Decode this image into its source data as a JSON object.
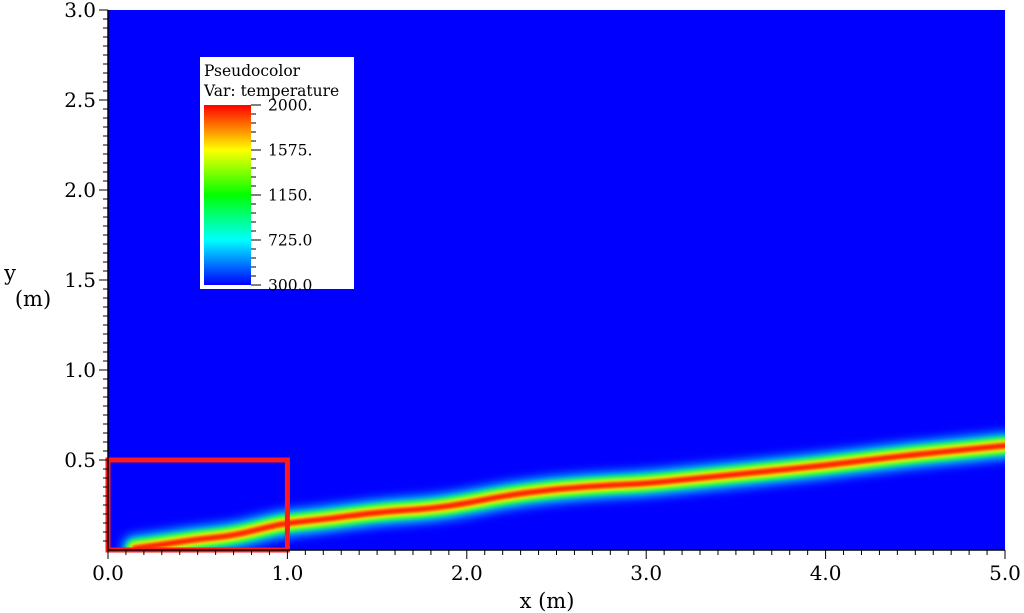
{
  "chart_data": {
    "type": "heatmap",
    "xlabel": "x (m)",
    "ylabel": "y",
    "ylabel_unit": "(m)",
    "xlim": [
      0.0,
      5.0
    ],
    "ylim": [
      0.0,
      3.0
    ],
    "x_tick_values": [
      0.0,
      1.0,
      2.0,
      3.0,
      4.0,
      5.0
    ],
    "x_tick_labels": [
      "0.0",
      "1.0",
      "2.0",
      "3.0",
      "4.0",
      "5.0"
    ],
    "y_tick_values": [
      0.5,
      1.0,
      1.5,
      2.0,
      2.5,
      3.0
    ],
    "y_tick_labels": [
      "0.5",
      "1.0",
      "1.5",
      "2.0",
      "2.5",
      "3.0"
    ],
    "legend": {
      "title_line1": "Pseudocolor",
      "title_line2": "Var: temperature",
      "labels": [
        "2000.",
        "1575.",
        "1150.",
        "725.0",
        "300.0"
      ],
      "min": 300.0,
      "max": 2000.0,
      "placement": "top-left"
    },
    "flame_centerline": {
      "x": [
        0.15,
        0.3,
        0.5,
        0.7,
        0.9,
        1.0,
        1.2,
        1.5,
        1.8,
        2.0,
        2.2,
        2.5,
        2.8,
        3.0,
        3.3,
        3.6,
        4.0,
        4.4,
        4.7,
        5.0
      ],
      "y": [
        0.01,
        0.03,
        0.06,
        0.08,
        0.13,
        0.15,
        0.17,
        0.21,
        0.23,
        0.26,
        0.3,
        0.34,
        0.36,
        0.37,
        0.4,
        0.43,
        0.47,
        0.52,
        0.55,
        0.58
      ],
      "peak_temperature": 2000.0,
      "ambient_temperature": 300.0
    },
    "highlight_box": {
      "x0": 0.0,
      "x1": 1.0,
      "y0": 0.0,
      "y1": 0.5,
      "color": "#ff1a1a"
    },
    "colormap": [
      "#0000ff",
      "#00ffff",
      "#00ff00",
      "#ffff00",
      "#ff0000"
    ],
    "background_color": "#0000ff",
    "grid": false
  }
}
